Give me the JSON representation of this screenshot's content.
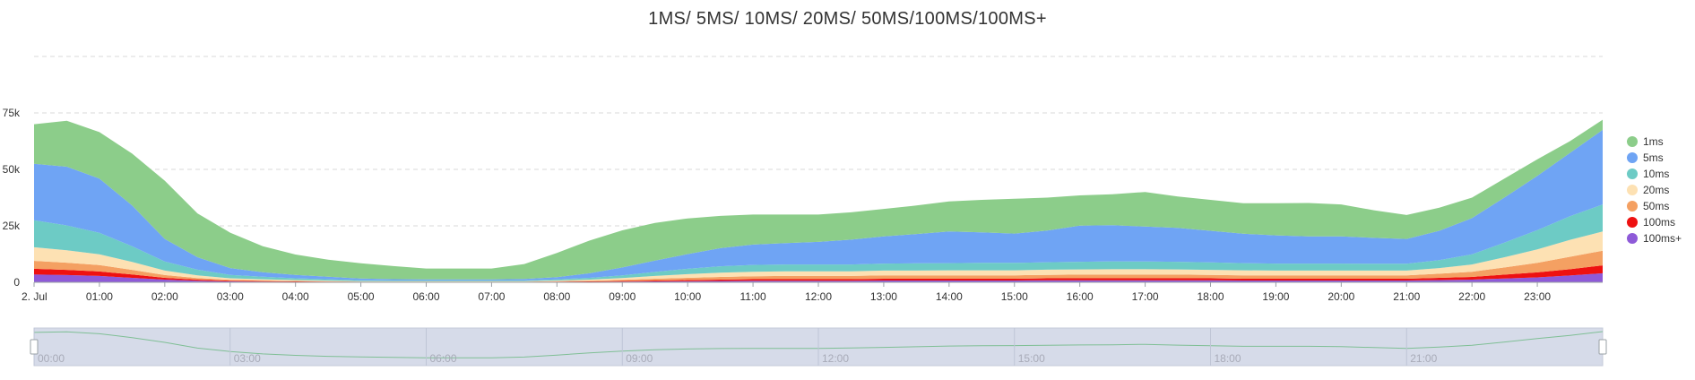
{
  "chart_data": {
    "type": "area",
    "stacked": true,
    "title": "1MS/ 5MS/ 10MS/ 20MS/ 50MS/100MS/100MS+",
    "xlabel": "",
    "ylabel": "",
    "x_hours": [
      0,
      0.5,
      1,
      1.5,
      2,
      2.5,
      3,
      3.5,
      4,
      4.5,
      5,
      5.5,
      6,
      6.5,
      7,
      7.5,
      8,
      8.5,
      9,
      9.5,
      10,
      10.5,
      11,
      11.5,
      12,
      12.5,
      13,
      13.5,
      14,
      14.5,
      15,
      15.5,
      16,
      16.5,
      17,
      17.5,
      18,
      18.5,
      19,
      19.5,
      20,
      20.5,
      21,
      21.5,
      22,
      22.5,
      23,
      23.5,
      24
    ],
    "x_ticks": [
      "2. Jul",
      "01:00",
      "02:00",
      "03:00",
      "04:00",
      "05:00",
      "06:00",
      "07:00",
      "08:00",
      "09:00",
      "10:00",
      "11:00",
      "12:00",
      "13:00",
      "14:00",
      "15:00",
      "16:00",
      "17:00",
      "18:00",
      "19:00",
      "20:00",
      "21:00",
      "22:00",
      "23:00"
    ],
    "y_ticks": [
      "0",
      "25k",
      "50k",
      "75k"
    ],
    "ylim": [
      0,
      100000
    ],
    "grid": true,
    "legend_position": "right",
    "series": [
      {
        "name": "100ms+",
        "color": "#8e5ad8",
        "values": [
          3500,
          3200,
          2800,
          2000,
          1200,
          700,
          400,
          300,
          200,
          150,
          100,
          100,
          100,
          100,
          100,
          100,
          150,
          200,
          300,
          400,
          500,
          600,
          700,
          700,
          700,
          700,
          800,
          800,
          800,
          800,
          800,
          900,
          900,
          900,
          900,
          900,
          900,
          800,
          800,
          800,
          800,
          800,
          800,
          1000,
          1200,
          1700,
          2200,
          3000,
          4000
        ]
      },
      {
        "name": "100ms",
        "color": "#ee1111",
        "values": [
          2500,
          2300,
          2000,
          1500,
          800,
          500,
          300,
          250,
          200,
          150,
          100,
          100,
          100,
          100,
          100,
          100,
          150,
          200,
          300,
          400,
          500,
          600,
          700,
          700,
          700,
          700,
          800,
          800,
          800,
          800,
          800,
          900,
          900,
          900,
          900,
          900,
          900,
          800,
          800,
          800,
          800,
          800,
          800,
          1000,
          1200,
          1700,
          2200,
          2800,
          3500
        ]
      },
      {
        "name": "50ms",
        "color": "#f4a062",
        "values": [
          3500,
          3200,
          2800,
          2000,
          1200,
          700,
          400,
          300,
          200,
          150,
          100,
          100,
          100,
          100,
          100,
          100,
          200,
          300,
          500,
          800,
          1000,
          1200,
          1300,
          1400,
          1400,
          1400,
          1500,
          1500,
          1500,
          1500,
          1500,
          1500,
          1600,
          1600,
          1600,
          1600,
          1500,
          1500,
          1500,
          1500,
          1500,
          1500,
          1500,
          1800,
          2300,
          3200,
          4200,
          5500,
          6500
        ]
      },
      {
        "name": "20ms",
        "color": "#fde1b3",
        "values": [
          6000,
          5500,
          4800,
          3500,
          2000,
          1200,
          700,
          500,
          400,
          300,
          200,
          200,
          200,
          200,
          200,
          200,
          300,
          500,
          800,
          1200,
          1600,
          1900,
          2000,
          2100,
          2100,
          2100,
          2100,
          2100,
          2200,
          2200,
          2200,
          2300,
          2300,
          2400,
          2400,
          2300,
          2200,
          2200,
          2100,
          2100,
          2100,
          2100,
          2100,
          2500,
          3200,
          4500,
          6000,
          7500,
          8500
        ]
      },
      {
        "name": "10ms",
        "color": "#6dcbc5",
        "values": [
          12000,
          11000,
          9500,
          7000,
          4000,
          2500,
          1500,
          1100,
          800,
          600,
          400,
          300,
          300,
          300,
          300,
          300,
          500,
          800,
          1200,
          1800,
          2400,
          2800,
          3000,
          3000,
          3000,
          3000,
          3100,
          3200,
          3200,
          3300,
          3300,
          3300,
          3400,
          3500,
          3400,
          3400,
          3300,
          3200,
          3100,
          3100,
          3100,
          3000,
          3000,
          3500,
          4500,
          6500,
          8500,
          10500,
          12000
        ]
      },
      {
        "name": "5ms",
        "color": "#6fa4f4",
        "values": [
          25000,
          26000,
          24000,
          18000,
          10000,
          5500,
          3000,
          2000,
          1500,
          1100,
          800,
          600,
          500,
          500,
          500,
          700,
          1000,
          2000,
          3500,
          5000,
          6500,
          8000,
          9000,
          9500,
          10000,
          11000,
          12000,
          13000,
          14000,
          13500,
          13000,
          14000,
          16000,
          16000,
          15500,
          15000,
          14000,
          13000,
          12500,
          12000,
          12000,
          11500,
          11000,
          13000,
          16000,
          20000,
          24000,
          28000,
          33000
        ]
      },
      {
        "name": "1ms",
        "color": "#8ccd8a",
        "values": [
          17500,
          20300,
          20600,
          23000,
          25800,
          19400,
          15700,
          11550,
          9000,
          7550,
          6700,
          5800,
          4800,
          4800,
          4800,
          6600,
          10700,
          14500,
          16400,
          16700,
          15800,
          14300,
          13300,
          12600,
          12100,
          12100,
          12200,
          12600,
          13300,
          14400,
          15400,
          14600,
          13400,
          13700,
          15300,
          13900,
          13700,
          13500,
          14200,
          14800,
          14200,
          12200,
          10600,
          10200,
          9100,
          8400,
          7400,
          5200,
          4500
        ]
      }
    ]
  },
  "legend_order": [
    "1ms",
    "5ms",
    "10ms",
    "20ms",
    "50ms",
    "100ms",
    "100ms+"
  ],
  "navigator": {
    "labels": [
      "00:00",
      "03:00",
      "06:00",
      "09:00",
      "12:00",
      "15:00",
      "18:00",
      "21:00"
    ],
    "colors": {
      "fill": "#d6dbe9",
      "line": "#7fbf95",
      "handle": "#ffffff"
    }
  }
}
